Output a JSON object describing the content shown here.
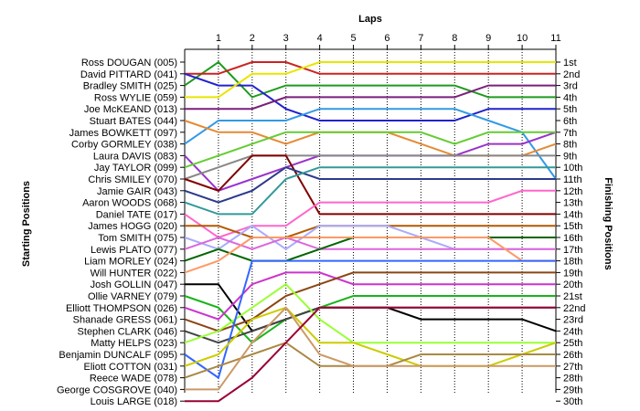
{
  "chart_data": {
    "type": "line",
    "title": "",
    "xlabel": "Laps",
    "ylabel_left": "Starting Positions",
    "ylabel_right": "Finishing Positions",
    "x": [
      0,
      1,
      2,
      3,
      4,
      5,
      6,
      7,
      8,
      9,
      10,
      11
    ],
    "x_tick_labels": [
      "1",
      "2",
      "3",
      "4",
      "5",
      "6",
      "7",
      "8",
      "9",
      "10",
      "11"
    ],
    "y_reversed": true,
    "ylim": [
      1,
      30
    ],
    "grid": "vertical",
    "left_labels": [
      "Ross DOUGAN (005)",
      "David PITTARD (041)",
      "Bradley SMITH (025)",
      "Ross WYLIE (059)",
      "Joe McKEAND (013)",
      "Stuart BATES (044)",
      "James BOWKETT (097)",
      "Corby GORMLEY (038)",
      "Laura DAVIS (083)",
      "Jay TAYLOR (099)",
      "Chris SMILEY (070)",
      "Jamie GAIR (043)",
      "Aaron WOODS (068)",
      "Daniel TATE (017)",
      "James HOGG (020)",
      "Tom SMITH (075)",
      "Lewis PLATO (077)",
      "Liam MORLEY (024)",
      "Will HUNTER (022)",
      "Josh GOLLIN (047)",
      "Ollie VARNEY (079)",
      "Elliott THOMPSON (026)",
      "Shanade GRESS (061)",
      "Stephen CLARK (046)",
      "Matty HELPS (023)",
      "Benjamin DUNCALF (095)",
      "Eliott COTTON (031)",
      "Reece WADE (078)",
      "George COSGROVE (040)",
      "Louis LARGE (018)"
    ],
    "right_labels": [
      "1st",
      "2nd",
      "3rd",
      "4th",
      "5th",
      "6th",
      "7th",
      "8th",
      "9th",
      "10th",
      "11th",
      "12th",
      "13th",
      "14th",
      "15th",
      "16th",
      "17th",
      "18th",
      "19th",
      "20th",
      "21st",
      "22nd",
      "23rd",
      "24th",
      "25th",
      "26th",
      "27th",
      "28th",
      "29th",
      "30th"
    ],
    "series": [
      {
        "color": "#1e9a1e",
        "values": [
          3,
          1,
          4,
          3,
          3,
          3,
          3,
          3,
          3,
          4,
          4,
          4
        ]
      },
      {
        "color": "#cc2222",
        "values": [
          2,
          2,
          1,
          1,
          2,
          2,
          2,
          2,
          2,
          2,
          2,
          2
        ]
      },
      {
        "color": "#2222cc",
        "values": [
          2,
          3,
          3,
          5,
          6,
          6,
          6,
          6,
          6,
          5,
          5,
          5
        ]
      },
      {
        "color": "#e6e600",
        "values": [
          4,
          4,
          2,
          2,
          1,
          1,
          1,
          1,
          1,
          1,
          1,
          1
        ]
      },
      {
        "color": "#7a1f7a",
        "values": [
          5,
          5,
          5,
          4,
          4,
          4,
          4,
          4,
          4,
          3,
          3,
          3
        ]
      },
      {
        "color": "#3399e6",
        "values": [
          8,
          6,
          6,
          6,
          5,
          5,
          5,
          5,
          5,
          6,
          7,
          11
        ]
      },
      {
        "color": "#e68a33",
        "values": [
          6,
          7,
          7,
          8,
          7,
          7,
          7,
          8,
          9,
          9,
          9,
          8
        ]
      },
      {
        "color": "#9933cc",
        "values": [
          9,
          12,
          11,
          10,
          9,
          9,
          9,
          9,
          9,
          8,
          8,
          7
        ]
      },
      {
        "color": "#66cc33",
        "values": [
          10,
          9,
          8,
          7,
          7,
          7,
          7,
          7,
          8,
          7,
          7,
          7
        ]
      },
      {
        "color": "#888888",
        "values": [
          11,
          10,
          9,
          9,
          9,
          9,
          9,
          9,
          9,
          9,
          9,
          9
        ]
      },
      {
        "color": "#800000",
        "values": [
          11,
          12,
          9,
          9,
          14,
          14,
          14,
          14,
          14,
          14,
          14,
          14
        ]
      },
      {
        "color": "#2b3a8c",
        "values": [
          12,
          13,
          12,
          10,
          11,
          11,
          11,
          11,
          11,
          11,
          11,
          11
        ]
      },
      {
        "color": "#339999",
        "values": [
          13,
          14,
          14,
          11,
          10,
          10,
          10,
          10,
          10,
          10,
          10,
          10
        ]
      },
      {
        "color": "#ff66cc",
        "values": [
          14,
          16,
          15,
          15,
          13,
          13,
          13,
          13,
          13,
          13,
          12,
          12
        ]
      },
      {
        "color": "#b35900",
        "values": [
          15,
          15,
          16,
          16,
          15,
          15,
          15,
          15,
          15,
          15,
          15,
          15
        ]
      },
      {
        "color": "#aaaaff",
        "values": [
          16,
          17,
          15,
          17,
          15,
          15,
          15,
          16,
          17,
          17,
          17,
          17
        ]
      },
      {
        "color": "#dd66dd",
        "values": [
          17,
          16,
          17,
          16,
          17,
          17,
          17,
          17,
          17,
          17,
          17,
          17
        ]
      },
      {
        "color": "#006600",
        "values": [
          18,
          17,
          18,
          18,
          17,
          16,
          16,
          16,
          16,
          16,
          16,
          16
        ]
      },
      {
        "color": "#ff9966",
        "values": [
          19,
          18,
          16,
          16,
          16,
          16,
          16,
          16,
          16,
          16,
          18,
          18
        ]
      },
      {
        "color": "#000000",
        "values": [
          20,
          20,
          24,
          23,
          22,
          22,
          22,
          23,
          23,
          23,
          23,
          24
        ]
      },
      {
        "color": "#1ab31a",
        "values": [
          21,
          22,
          25,
          23,
          22,
          21,
          21,
          21,
          21,
          21,
          21,
          21
        ]
      },
      {
        "color": "#cc33cc",
        "values": [
          22,
          23,
          20,
          19,
          19,
          20,
          20,
          20,
          20,
          20,
          20,
          20
        ]
      },
      {
        "color": "#8b4513",
        "values": [
          23,
          24,
          23,
          21,
          20,
          19,
          19,
          19,
          19,
          19,
          19,
          19
        ]
      },
      {
        "color": "#444444",
        "values": [
          24,
          25,
          24,
          23,
          22,
          22,
          22,
          22,
          22,
          22,
          22,
          22
        ]
      },
      {
        "color": "#99ff33",
        "values": [
          25,
          24,
          22,
          20,
          23,
          25,
          25,
          25,
          25,
          25,
          25,
          25
        ]
      },
      {
        "color": "#3366ff",
        "values": [
          26,
          28,
          18,
          18,
          18,
          18,
          18,
          18,
          18,
          18,
          18,
          18
        ]
      },
      {
        "color": "#cccc00",
        "values": [
          27,
          26,
          23,
          22,
          25,
          25,
          26,
          27,
          27,
          27,
          26,
          25
        ]
      },
      {
        "color": "#aa8844",
        "values": [
          28,
          27,
          26,
          25,
          27,
          27,
          27,
          26,
          26,
          26,
          26,
          26
        ]
      },
      {
        "color": "#cc9966",
        "values": [
          29,
          29,
          25,
          22,
          26,
          27,
          27,
          27,
          27,
          27,
          27,
          27
        ]
      },
      {
        "color": "#990033",
        "values": [
          30,
          30,
          28,
          25,
          22,
          22,
          22,
          22,
          22,
          22,
          22,
          22
        ]
      }
    ]
  }
}
